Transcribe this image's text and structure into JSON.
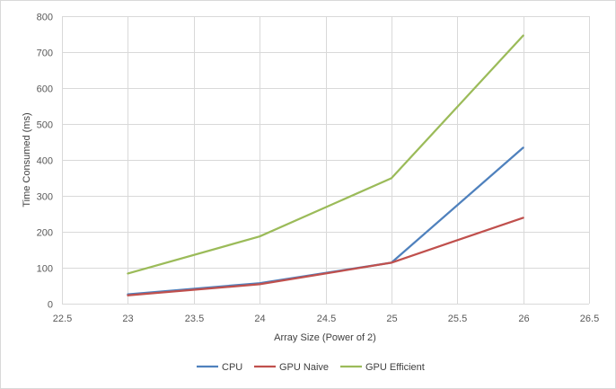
{
  "chart_data": {
    "type": "line",
    "title": "",
    "xlabel": "Array Size (Power of 2)",
    "ylabel": "Time Consumed (ms)",
    "xlim": [
      22.5,
      26.5
    ],
    "ylim": [
      0,
      800
    ],
    "xticks": [
      "22.5",
      "23",
      "23.5",
      "24",
      "24.5",
      "25",
      "25.5",
      "26",
      "26.5"
    ],
    "yticks": [
      "0",
      "100",
      "200",
      "300",
      "400",
      "500",
      "600",
      "700",
      "800"
    ],
    "grid": true,
    "legend_position": "bottom",
    "x": [
      23,
      24,
      25,
      26
    ],
    "series": [
      {
        "name": "CPU",
        "color": "#4f81bd",
        "values": [
          26,
          57,
          114,
          434
        ]
      },
      {
        "name": "GPU Naive",
        "color": "#c0504d",
        "values": [
          23,
          54,
          114,
          239
        ]
      },
      {
        "name": "GPU Efficient",
        "color": "#9bbb59",
        "values": [
          84,
          187,
          349,
          746
        ]
      }
    ]
  }
}
